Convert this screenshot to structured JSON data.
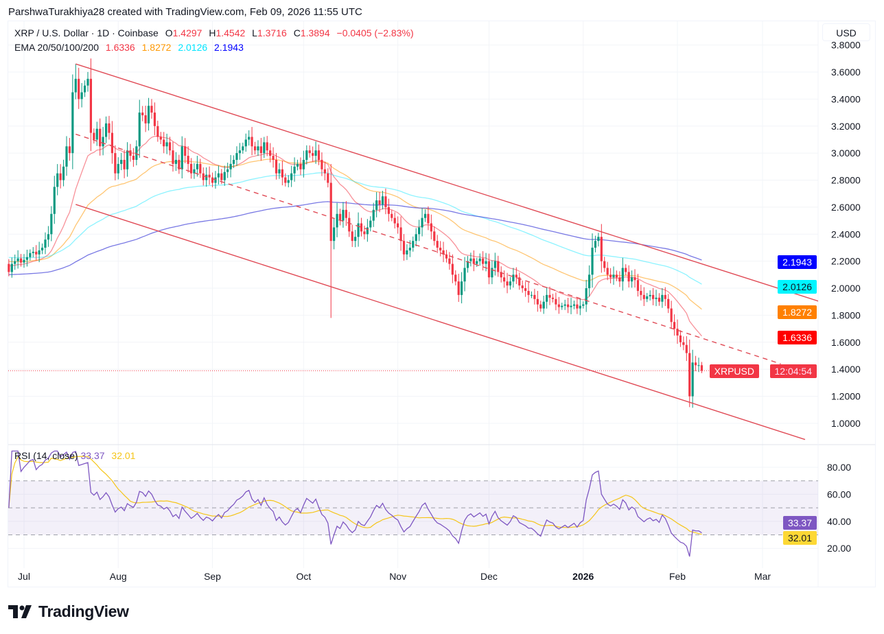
{
  "credit": "ParshwaTurakhiya28 created with TradingView.com, Feb 09, 2026 11:55 UTC",
  "legend": {
    "symbol": "XRP / U.S. Dollar · 1D · Coinbase",
    "o_label": "O",
    "o": "1.4297",
    "h_label": "H",
    "h": "1.4542",
    "l_label": "L",
    "l": "1.3716",
    "c_label": "C",
    "c": "1.3894",
    "change": "−0.0405 (−2.83%)",
    "ema_label": "EMA 20/50/100/200",
    "ema20": "1.6336",
    "ema50": "1.8272",
    "ema100": "2.0126",
    "ema200": "2.1943"
  },
  "currency_button": "USD",
  "tags": {
    "ema200": "2.1943",
    "ema100": "2.0126",
    "ema50": "1.8272",
    "ema20": "1.6336",
    "symbol": "XRPUSD",
    "countdown": "12:04:54",
    "rsi": "33.37",
    "rsi_ma": "32.01"
  },
  "rsi_legend": {
    "label": "RSI (14, close)",
    "rsi": "33.37",
    "ma": "32.01"
  },
  "brand": "TradingView",
  "colors": {
    "up": "#089981",
    "down": "#f23645",
    "ema20": "#f23645",
    "ema50": "#ff9800",
    "ema100": "#00e5ff",
    "ema200": "#0000ff",
    "rsi": "#7e57c2",
    "rsi_ma": "#f5c518",
    "trend": "#e04a55"
  },
  "chart_data": {
    "type": "candlestick",
    "title": "XRP / U.S. Dollar · 1D · Coinbase",
    "start_date": "2025-06-26",
    "end_date": "2026-02-09",
    "first_open": 2.18,
    "closes": [
      2.12,
      2.18,
      2.2,
      2.22,
      2.19,
      2.21,
      2.23,
      2.26,
      2.27,
      2.25,
      2.28,
      2.3,
      2.36,
      2.4,
      2.55,
      2.75,
      2.85,
      2.8,
      2.9,
      3.05,
      3.0,
      3.45,
      3.55,
      3.4,
      3.45,
      3.5,
      3.55,
      3.15,
      3.1,
      3.18,
      3.05,
      3.12,
      3.22,
      3.15,
      3.0,
      2.85,
      2.92,
      2.95,
      2.88,
      3.02,
      2.98,
      2.95,
      3.05,
      3.3,
      3.28,
      3.22,
      3.35,
      3.3,
      3.2,
      3.12,
      3.1,
      3.05,
      3.08,
      3.02,
      2.92,
      2.95,
      2.88,
      3.05,
      2.98,
      2.92,
      2.85,
      2.88,
      2.92,
      2.85,
      2.8,
      2.84,
      2.82,
      2.78,
      2.82,
      2.85,
      2.8,
      2.86,
      2.88,
      2.92,
      2.95,
      3.0,
      3.02,
      3.05,
      3.1,
      3.12,
      3.05,
      3.02,
      3.05,
      3.0,
      3.08,
      3.02,
      2.98,
      2.95,
      2.85,
      2.88,
      2.82,
      2.78,
      2.8,
      2.85,
      2.9,
      2.92,
      2.88,
      2.95,
      3.02,
      3.0,
      2.98,
      3.02,
      2.95,
      2.88,
      2.85,
      2.78,
      2.35,
      2.45,
      2.55,
      2.5,
      2.58,
      2.52,
      2.42,
      2.35,
      2.38,
      2.48,
      2.42,
      2.4,
      2.45,
      2.5,
      2.58,
      2.65,
      2.62,
      2.68,
      2.6,
      2.55,
      2.52,
      2.48,
      2.45,
      2.35,
      2.25,
      2.28,
      2.3,
      2.35,
      2.4,
      2.45,
      2.52,
      2.55,
      2.48,
      2.42,
      2.35,
      2.3,
      2.28,
      2.25,
      2.22,
      2.18,
      2.1,
      2.05,
      1.95,
      2.05,
      2.15,
      2.2,
      2.22,
      2.18,
      2.2,
      2.22,
      2.18,
      2.2,
      2.08,
      2.15,
      2.2,
      2.12,
      2.08,
      2.05,
      2.02,
      2.05,
      2.1,
      2.08,
      2.02,
      2.0,
      1.98,
      1.95,
      1.95,
      1.92,
      1.88,
      1.85,
      1.9,
      1.95,
      1.93,
      1.92,
      1.88,
      1.86,
      1.87,
      1.88,
      1.86,
      1.87,
      1.88,
      1.85,
      1.87,
      1.88,
      2.0,
      2.1,
      2.3,
      2.35,
      2.38,
      2.2,
      2.15,
      2.1,
      2.08,
      2.1,
      2.08,
      2.05,
      2.15,
      2.12,
      2.05,
      2.08,
      2.06,
      1.98,
      1.95,
      1.92,
      1.94,
      1.95,
      1.92,
      1.93,
      1.9,
      1.95,
      1.92,
      1.85,
      1.75,
      1.7,
      1.65,
      1.6,
      1.58,
      1.52,
      1.2,
      1.45,
      1.4297,
      1.43,
      1.3894
    ],
    "extreme_wicks": [
      {
        "day": 22,
        "high": 3.66
      },
      {
        "day": 106,
        "low": 1.78
      },
      {
        "day": 194,
        "high": 2.41
      },
      {
        "day": 224,
        "low": 1.12
      },
      {
        "day": 228,
        "high": 1.4542,
        "low": 1.3716
      }
    ],
    "ema_seed": {
      "ema20": 2.17,
      "ema50": 2.2,
      "ema100": 2.23,
      "ema200": 2.1
    },
    "last_price": 1.3894,
    "y_axis": {
      "ticks": [
        1.0,
        1.2,
        1.4,
        1.6,
        1.8,
        2.0,
        2.2,
        2.4,
        2.6,
        2.8,
        3.0,
        3.2,
        3.4,
        3.6,
        3.8
      ],
      "decimals": 4,
      "range": [
        0.88,
        3.88
      ]
    },
    "x_axis": {
      "ticks": [
        {
          "label": "Jul",
          "day": 5,
          "bold": false
        },
        {
          "label": "Aug",
          "day": 36,
          "bold": false
        },
        {
          "label": "Sep",
          "day": 67,
          "bold": false
        },
        {
          "label": "Oct",
          "day": 97,
          "bold": false
        },
        {
          "label": "Nov",
          "day": 128,
          "bold": false
        },
        {
          "label": "Dec",
          "day": 158,
          "bold": false
        },
        {
          "label": "2026",
          "day": 189,
          "bold": true
        },
        {
          "label": "Feb",
          "day": 220,
          "bold": false
        },
        {
          "label": "Mar",
          "day": 248,
          "bold": false
        }
      ]
    },
    "trendlines": [
      {
        "name": "channel-upper",
        "from": [
          22,
          3.66
        ],
        "to": [
          267,
          1.9
        ],
        "style": "solid"
      },
      {
        "name": "channel-lower",
        "from": [
          22,
          2.62
        ],
        "to": [
          262,
          0.88
        ],
        "style": "solid"
      },
      {
        "name": "channel-mid",
        "from": [
          22,
          3.14
        ],
        "to": [
          254,
          1.44
        ],
        "style": "dashed"
      }
    ],
    "rsi": {
      "period": 14,
      "ma_period": 14,
      "ticks": [
        20,
        40,
        60,
        80
      ],
      "bands": [
        70,
        50,
        30
      ],
      "range": [
        14,
        92
      ]
    }
  }
}
